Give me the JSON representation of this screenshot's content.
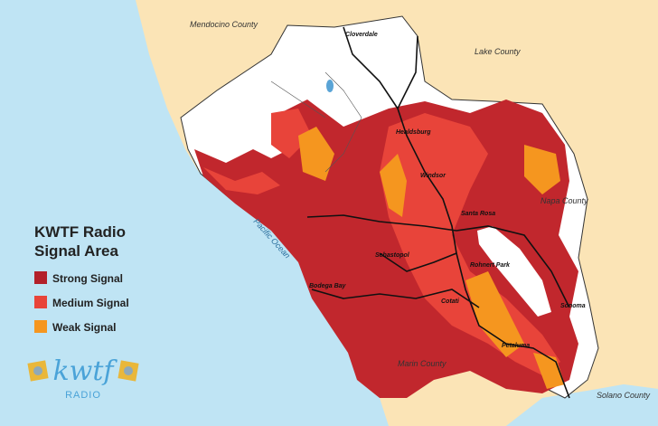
{
  "title_lines": [
    "KWTF Radio",
    "Signal Area"
  ],
  "legend": [
    "Strong Signal",
    "Medium Signal",
    "Weak Signal"
  ],
  "logo": {
    "name": "kwtf",
    "tagline": "RADIO"
  },
  "counties": [
    "Mendocino County",
    "Lake County",
    "Napa County",
    "Marin County",
    "Solano County"
  ],
  "water": [
    "Pacific Ocean"
  ],
  "cities": [
    "Cloverdale",
    "Healdsburg",
    "Windsor",
    "Santa Rosa",
    "Sebastopol",
    "Rohnert Park",
    "Sonoma",
    "Bodega Bay",
    "Cotati",
    "Petaluma"
  ]
}
